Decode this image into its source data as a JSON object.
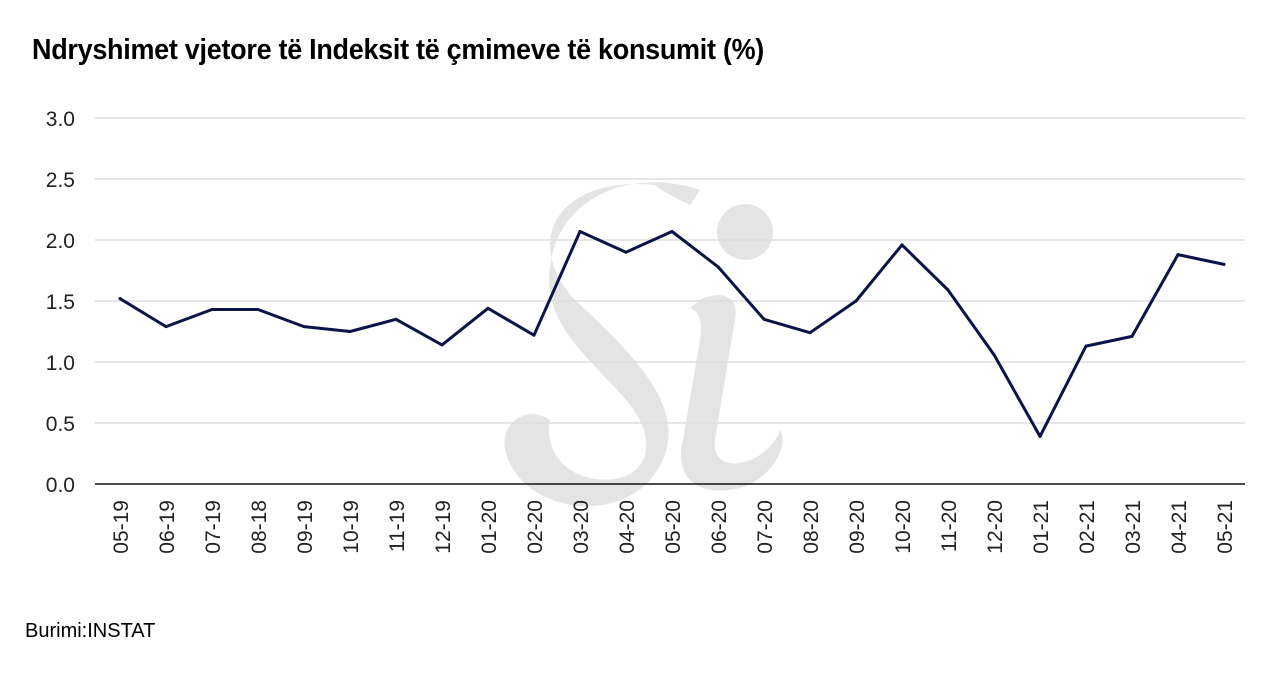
{
  "title": "Ndryshimet vjetore të Indeksit të çmimeve të konsumit (%)",
  "source": "Burimi:INSTAT",
  "watermark": "Si",
  "colors": {
    "line": "#0b1347",
    "grid": "#dddddd",
    "watermark": "#e2e2e2"
  },
  "chart_data": {
    "type": "line",
    "title": "Ndryshimet vjetore të Indeksit të çmimeve të konsumit (%)",
    "xlabel": "",
    "ylabel": "",
    "ylim": [
      0,
      3.0
    ],
    "yticks": [
      "0.0",
      "0.5",
      "1.0",
      "1.5",
      "2.0",
      "2.5",
      "3.0"
    ],
    "grid": true,
    "legend": "none",
    "categories": [
      "05-19",
      "06-19",
      "07-19",
      "08-18",
      "09-19",
      "10-19",
      "11-19",
      "12-19",
      "01-20",
      "02-20",
      "03-20",
      "04-20",
      "05-20",
      "06-20",
      "07-20",
      "08-20",
      "09-20",
      "10-20",
      "11-20",
      "12-20",
      "01-21",
      "02-21",
      "03-21",
      "04-21",
      "05-21"
    ],
    "values": [
      1.52,
      1.29,
      1.43,
      1.43,
      1.29,
      1.25,
      1.35,
      1.14,
      1.44,
      1.22,
      2.07,
      1.9,
      2.07,
      1.78,
      1.35,
      1.24,
      1.5,
      1.96,
      1.59,
      1.06,
      0.39,
      1.13,
      1.21,
      1.88,
      1.8
    ]
  }
}
